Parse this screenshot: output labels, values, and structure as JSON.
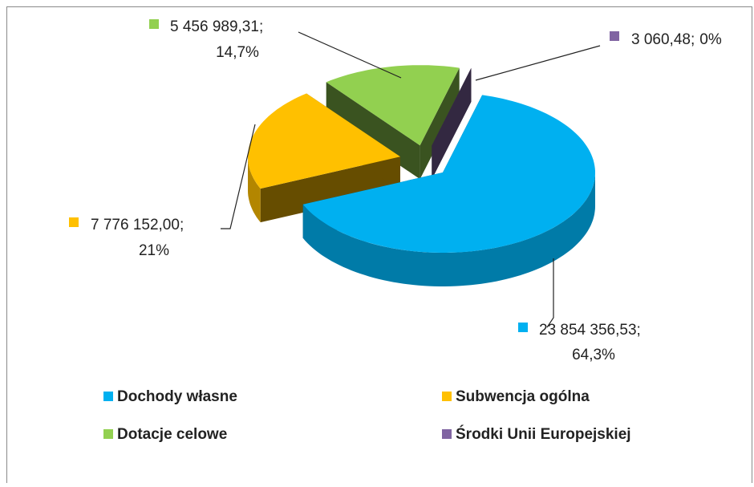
{
  "chart_data": {
    "type": "pie",
    "categories": [
      "Dochody własne",
      "Subwencja ogólna",
      "Dotacje celowe",
      "Środki Unii Europejskiej"
    ],
    "values": [
      23854356.53,
      7776152.0,
      5456989.31,
      3060.48
    ],
    "value_labels": [
      "23 854 356,53;",
      "7 776 152,00;",
      "5 456 989,31;",
      "3 060,48;"
    ],
    "percent_labels": [
      "64,3%",
      "21%",
      "14,7%",
      "0%"
    ],
    "colors": [
      "#00b0f0",
      "#ffc000",
      "#92d050",
      "#8064a2"
    ],
    "legend": "bottom"
  }
}
